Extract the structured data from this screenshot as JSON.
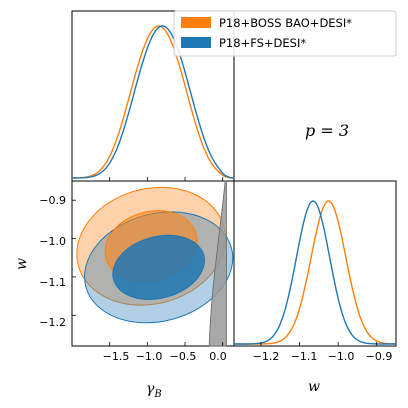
{
  "colors": {
    "orange": "#ff7f0e",
    "blue": "#1f77b4",
    "gray": "#999999"
  },
  "legend": {
    "entries": [
      "P18+BOSS BAO+DESI*",
      "P18+FS+DESI*"
    ],
    "placement": "top-right"
  },
  "annotation": "p = 3",
  "chart_data": [
    {
      "type": "line",
      "panel": "gamma_B marginal",
      "xlim": [
        -2.0,
        0.15
      ],
      "series": [
        {
          "name": "P18+BOSS BAO+DESI*",
          "color": "#ff7f0e",
          "mean": -0.85,
          "sigma": 0.36
        },
        {
          "name": "P18+FS+DESI*",
          "color": "#1f77b4",
          "mean": -0.8,
          "sigma": 0.36
        }
      ]
    },
    {
      "type": "area",
      "panel": "w vs gamma_B 2D",
      "xlabel": "γB",
      "ylabel": "w",
      "xlim": [
        -2.0,
        0.15
      ],
      "ylim": [
        -1.28,
        -0.85
      ],
      "xticks": [
        -1.5,
        -1.0,
        -0.5,
        0.0
      ],
      "xtick_labels": [
        "−1.5",
        "−1.0",
        "−0.5",
        "0.0"
      ],
      "yticks": [
        -0.9,
        -1.0,
        -1.1,
        -1.2
      ],
      "ytick_labels": [
        "−0.9",
        "−1.0",
        "−1.1",
        "−1.2"
      ],
      "series": [
        {
          "name": "P18+BOSS BAO+DESI*",
          "color": "#ff7f0e",
          "cx": -0.95,
          "cy": -1.02,
          "rx68": 0.62,
          "ry68": 0.09,
          "rx95": 1.0,
          "ry95": 0.15,
          "tilt": -15
        },
        {
          "name": "P18+FS+DESI*",
          "color": "#1f77b4",
          "cx": -0.85,
          "cy": -1.075,
          "rx68": 0.62,
          "ry68": 0.08,
          "rx95": 1.0,
          "ry95": 0.14,
          "tilt": -15
        },
        {
          "name": "excluded region",
          "color": "#999999",
          "x_from": -0.1,
          "x_to": 0.05
        }
      ]
    },
    {
      "type": "line",
      "panel": "w marginal",
      "xlabel": "w",
      "xlim": [
        -1.27,
        -0.85
      ],
      "xticks": [
        -1.2,
        -1.1,
        -1.0,
        -0.9
      ],
      "xtick_labels": [
        "−1.2",
        "−1.1",
        "−1.0",
        "−0.9"
      ],
      "series": [
        {
          "name": "P18+BOSS BAO+DESI*",
          "color": "#ff7f0e",
          "mean": -1.025,
          "sigma": 0.045
        },
        {
          "name": "P18+FS+DESI*",
          "color": "#1f77b4",
          "mean": -1.065,
          "sigma": 0.043
        }
      ]
    }
  ]
}
